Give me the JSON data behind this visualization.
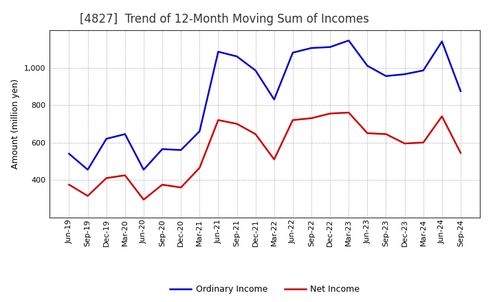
{
  "title": "[4827]  Trend of 12-Month Moving Sum of Incomes",
  "ylabel": "Amount (million yen)",
  "background_color": "#ffffff",
  "plot_bg_color": "#ffffff",
  "grid_color": "#999999",
  "labels": [
    "Jun-19",
    "Sep-19",
    "Dec-19",
    "Mar-20",
    "Jun-20",
    "Sep-20",
    "Dec-20",
    "Mar-21",
    "Jun-21",
    "Sep-21",
    "Dec-21",
    "Mar-22",
    "Jun-22",
    "Sep-22",
    "Dec-22",
    "Mar-23",
    "Jun-23",
    "Sep-23",
    "Dec-23",
    "Mar-24",
    "Jun-24",
    "Sep-24"
  ],
  "ordinary_income": [
    540,
    455,
    620,
    645,
    455,
    565,
    560,
    660,
    1085,
    1060,
    985,
    830,
    1080,
    1105,
    1110,
    1145,
    1010,
    955,
    965,
    985,
    1140,
    875
  ],
  "net_income": [
    375,
    315,
    410,
    425,
    295,
    375,
    360,
    465,
    720,
    700,
    645,
    510,
    720,
    730,
    755,
    760,
    650,
    645,
    595,
    600,
    740,
    545
  ],
  "ordinary_color": "#0000cc",
  "net_color": "#cc0000",
  "ylim_min": 200,
  "ylim_max": 1200,
  "yticks": [
    400,
    600,
    800,
    1000
  ],
  "title_fontsize": 12,
  "axis_fontsize": 9,
  "tick_fontsize": 8,
  "legend_fontsize": 9,
  "line_width": 1.8
}
